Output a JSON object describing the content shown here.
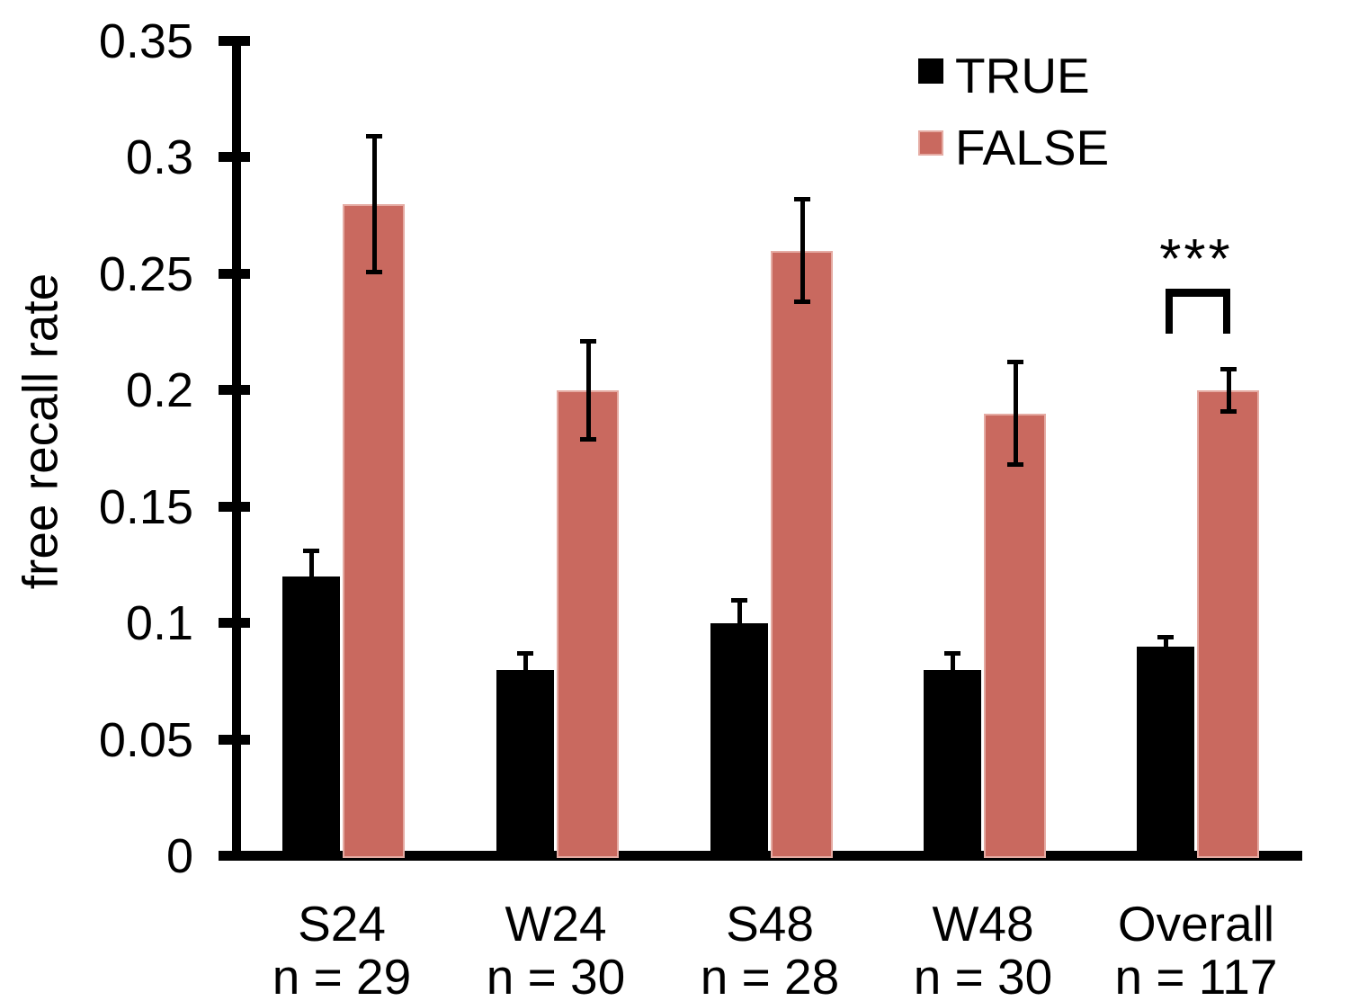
{
  "chart_data": {
    "type": "bar",
    "title": "",
    "xlabel": "",
    "ylabel": "free recall rate",
    "ylim": [
      0,
      0.35
    ],
    "yticks": [
      0,
      0.05,
      0.1,
      0.15,
      0.2,
      0.25,
      0.3,
      0.35
    ],
    "ytick_labels": [
      "0",
      "0.05",
      "0.1",
      "0.15",
      "0.2",
      "0.25",
      "0.3",
      "0.35"
    ],
    "grid": false,
    "legend_position": "top-right",
    "categories": [
      "S24",
      "W24",
      "S48",
      "W48",
      "Overall"
    ],
    "category_sublabels": [
      "n = 29",
      "n = 30",
      "n = 28",
      "n = 30",
      "n = 117"
    ],
    "series": [
      {
        "name": "TRUE",
        "color": "#000000",
        "border_color": "#000000",
        "values": [
          0.12,
          0.08,
          0.1,
          0.08,
          0.09
        ],
        "errors": [
          0.012,
          0.008,
          0.011,
          0.008,
          0.005
        ],
        "error_bar_style": "upper"
      },
      {
        "name": "FALSE",
        "color": "#C9695F",
        "border_color": "#E5ABA3",
        "values": [
          0.28,
          0.2,
          0.26,
          0.19,
          0.2
        ],
        "errors": [
          0.03,
          0.022,
          0.023,
          0.023,
          0.01
        ],
        "error_bar_style": "both"
      }
    ],
    "significance": {
      "label": "***",
      "category": "Overall",
      "between": [
        "TRUE",
        "FALSE"
      ]
    }
  }
}
